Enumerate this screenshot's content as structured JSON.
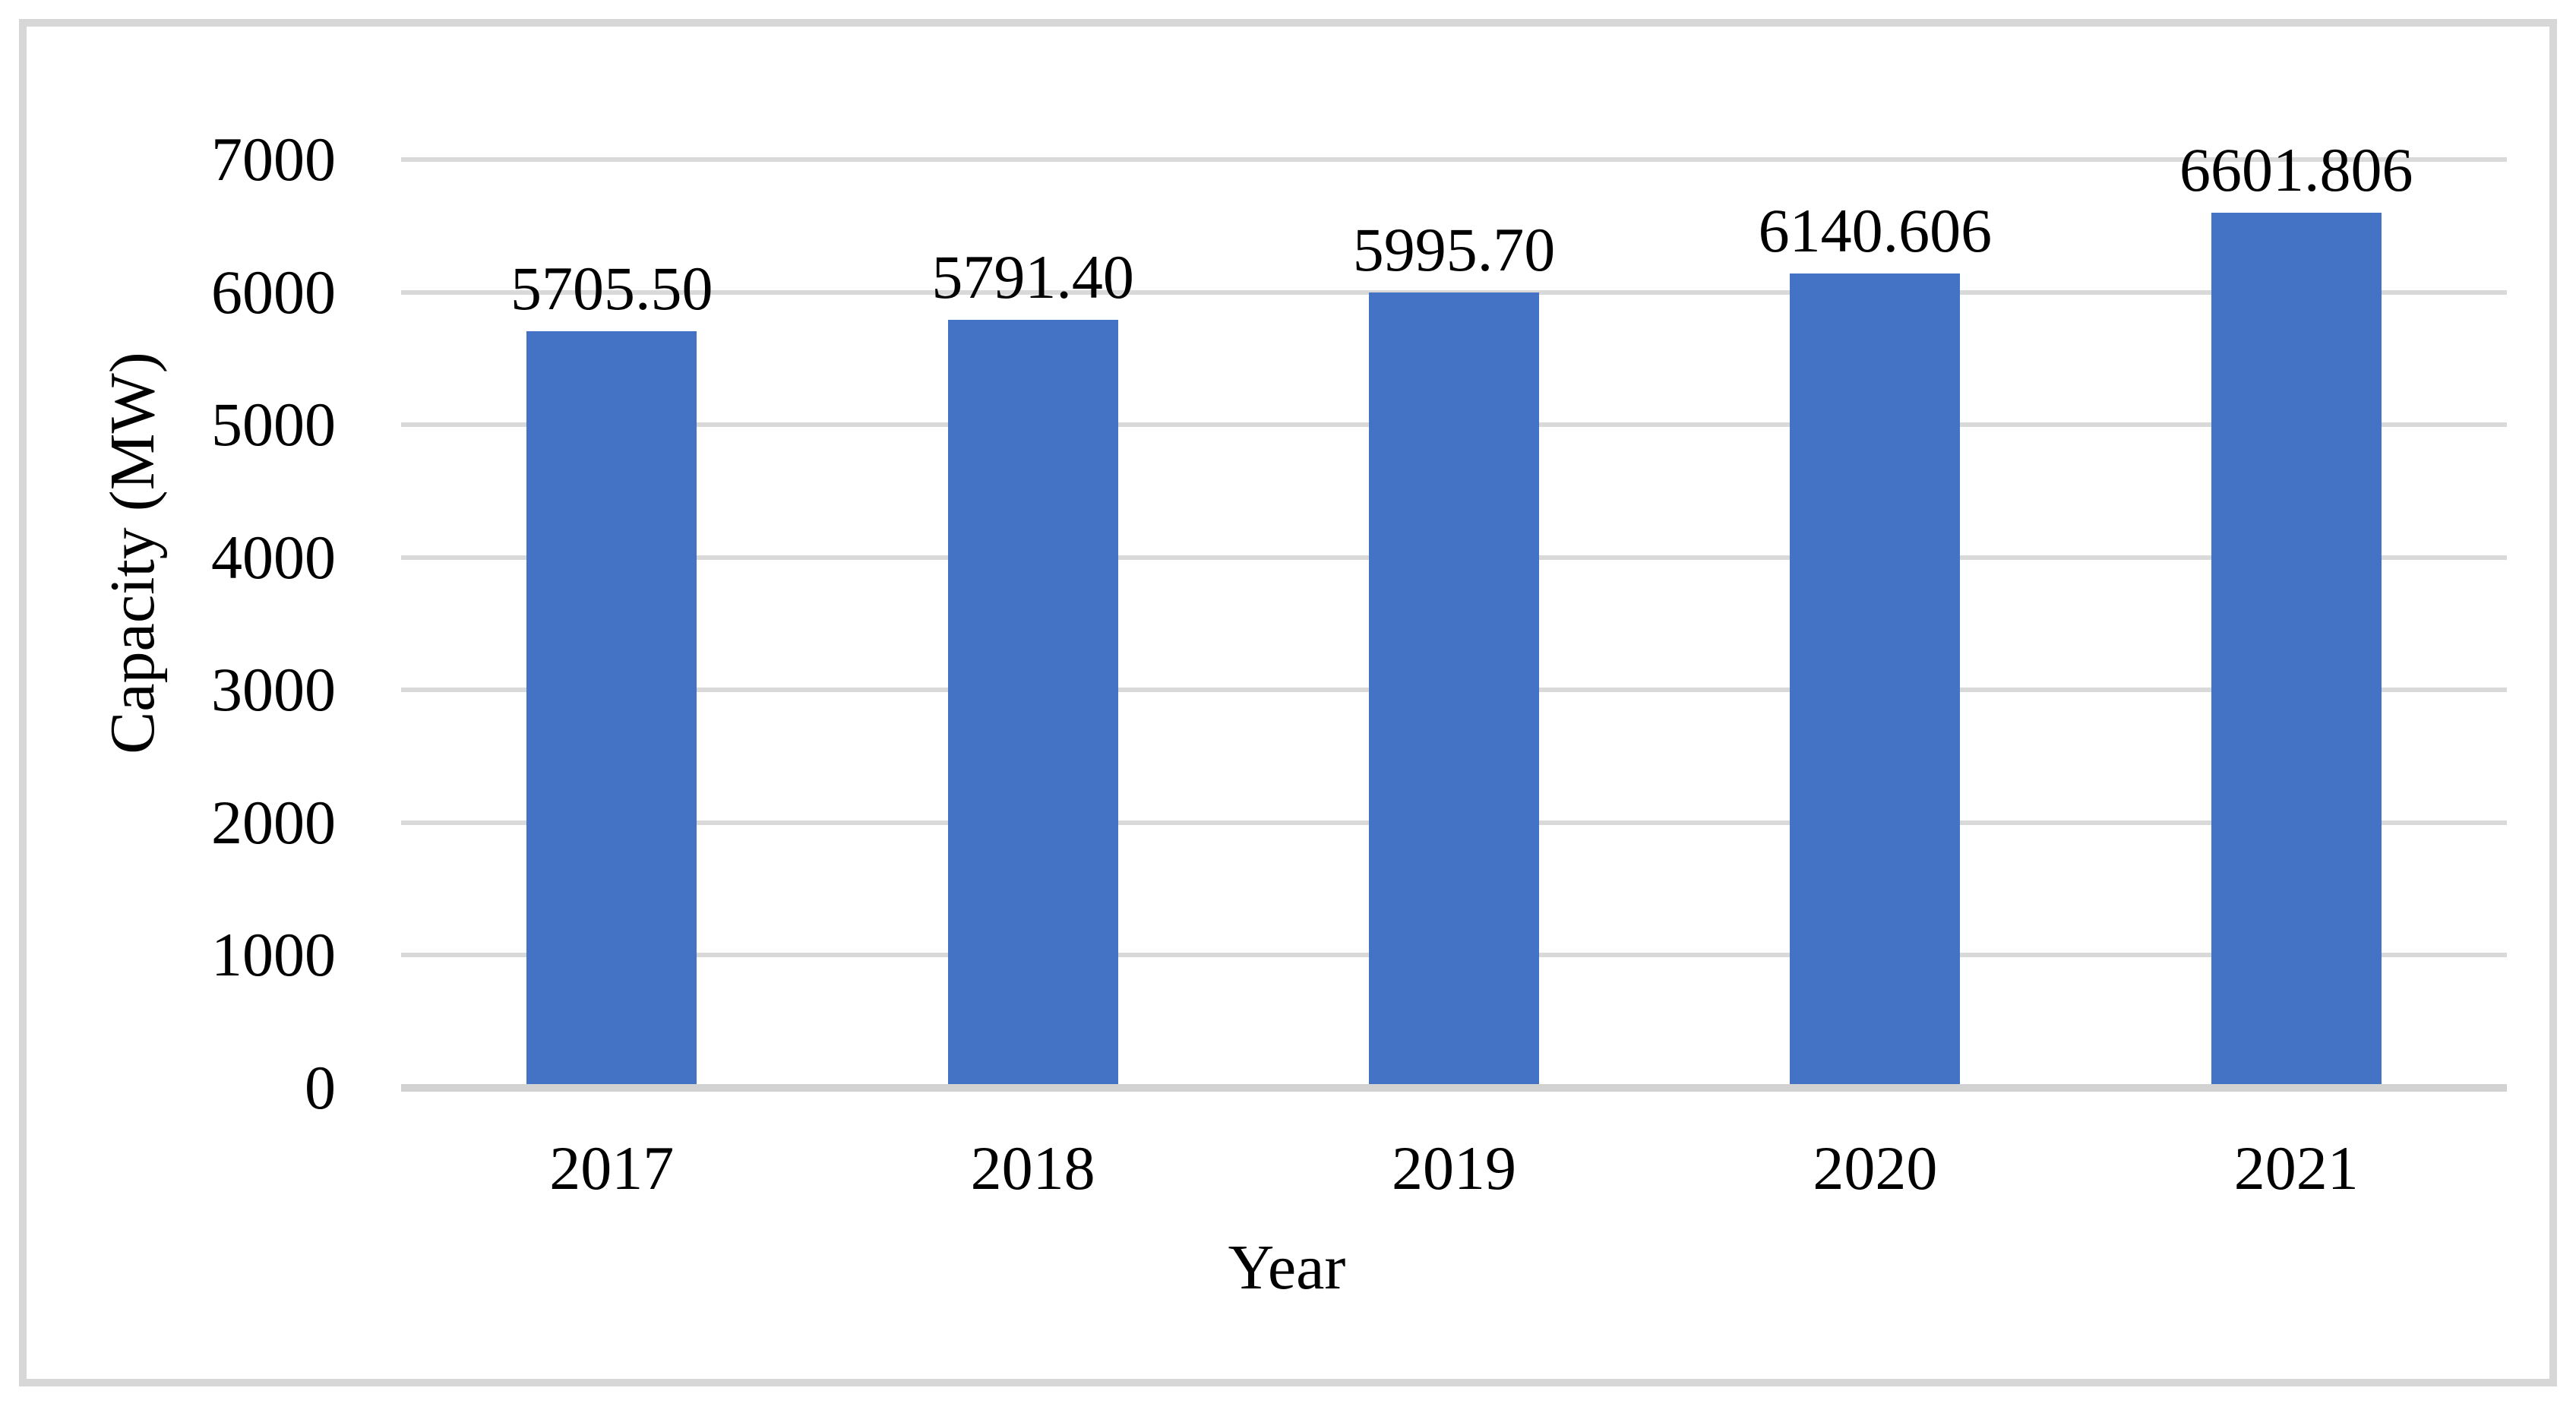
{
  "chart_data": {
    "type": "bar",
    "title": "",
    "xlabel": "Year",
    "ylabel": "Capacity (MW)",
    "categories": [
      "2017",
      "2018",
      "2019",
      "2020",
      "2021"
    ],
    "values": [
      5705.5,
      5791.4,
      5995.7,
      6140.606,
      6601.806
    ],
    "data_labels": [
      "5705.50",
      "5791.40",
      "5995.70",
      "6140.606",
      "6601.806"
    ],
    "ylim": [
      0,
      7000
    ],
    "ytick_step": 1000,
    "ytick_labels": [
      "0",
      "1000",
      "2000",
      "3000",
      "4000",
      "5000",
      "6000",
      "7000"
    ],
    "grid": "horizontal-only",
    "legend": "none",
    "colors": {
      "bar": "#4472c4",
      "gridline": "#d9d9d9",
      "axis_line": "#d2d2d2",
      "text": "#000000",
      "frame_border": "#d7d7d7",
      "background": "#ffffff"
    }
  }
}
